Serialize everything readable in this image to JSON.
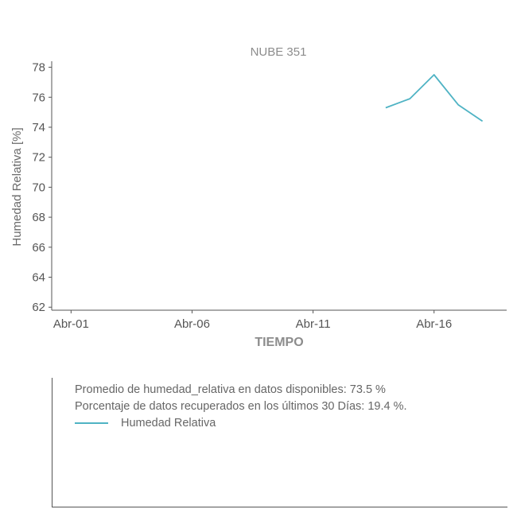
{
  "chart_data": {
    "type": "line",
    "title": "NUBE 351",
    "xlabel": "TIEMPO",
    "ylabel": "Humedad Relativa [%]",
    "ylim": [
      61.8,
      78.4
    ],
    "yticks": [
      62,
      64,
      66,
      68,
      70,
      72,
      74,
      76,
      78
    ],
    "x_range_days": [
      -0.8,
      18.0
    ],
    "xticks": [
      {
        "day": 0,
        "label": "Abr-01"
      },
      {
        "day": 5,
        "label": "Abr-06"
      },
      {
        "day": 10,
        "label": "Abr-11"
      },
      {
        "day": 15,
        "label": "Abr-16"
      }
    ],
    "series": [
      {
        "name": "Humedad Relativa",
        "color": "#4fb3c4",
        "points": [
          {
            "day": 13,
            "y": 75.3
          },
          {
            "day": 14,
            "y": 75.9
          },
          {
            "day": 15,
            "y": 77.5
          },
          {
            "day": 16,
            "y": 75.5
          },
          {
            "day": 17,
            "y": 74.4
          }
        ]
      }
    ],
    "grid": false,
    "legend_position": "bottom-box"
  },
  "info": {
    "line1": "Promedio de humedad_relativa en datos disponibles: 73.5 %",
    "line2": "Porcentaje de datos recuperados en los últimos 30 Días: 19.4 %."
  },
  "legend": {
    "label": "Humedad Relativa",
    "color": "#4fb3c4"
  }
}
